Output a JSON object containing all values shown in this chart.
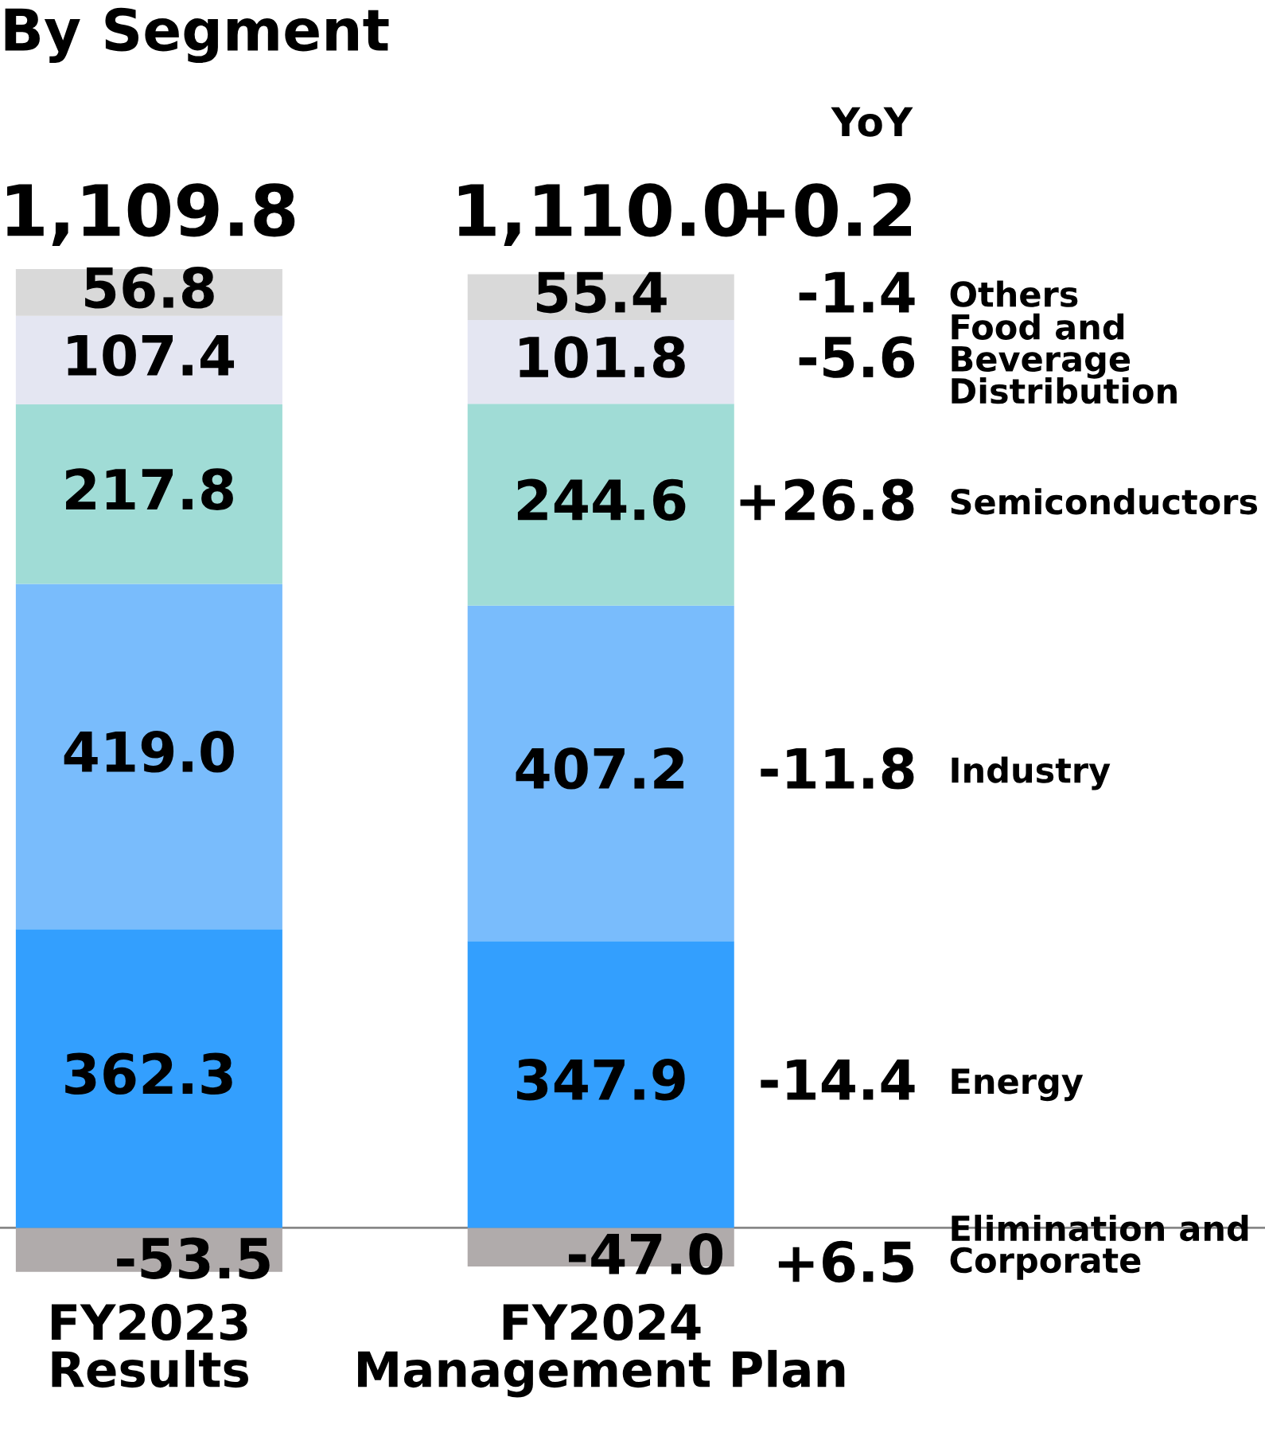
{
  "chart_data": {
    "type": "bar",
    "title": "By Segment",
    "stacked": true,
    "legend": false,
    "grid": false,
    "categories": [
      "FY2023\nResults",
      "FY2024\nManagement Plan"
    ],
    "series": [
      {
        "name": "Elimination and\nCorporate",
        "color": "#b0abab",
        "values": [
          -53.5,
          -47.0
        ],
        "value_labels": [
          "-53.5",
          "-47.0"
        ]
      },
      {
        "name": "Energy",
        "color": "#339ffe",
        "values": [
          362.3,
          347.9
        ],
        "value_labels": [
          "362.3",
          "347.9"
        ]
      },
      {
        "name": "Industry",
        "color": "#79bcfc",
        "values": [
          419.0,
          407.2
        ],
        "value_labels": [
          "419.0",
          "407.2"
        ]
      },
      {
        "name": "Semiconductors",
        "color": "#a0dcd6",
        "values": [
          217.8,
          244.6
        ],
        "value_labels": [
          "217.8",
          "244.6"
        ]
      },
      {
        "name": "Food and\nBeverage\nDistribution",
        "color": "#e4e6f2",
        "values": [
          107.4,
          101.8
        ],
        "value_labels": [
          "107.4",
          "101.8"
        ]
      },
      {
        "name": "Others",
        "color": "#d9d9d9",
        "values": [
          56.8,
          55.4
        ],
        "value_labels": [
          "56.8",
          "55.4"
        ]
      }
    ],
    "totals": [
      "1,109.8",
      "1,110.0"
    ],
    "annotations": [
      "YoY",
      "+0.2",
      "+6.5",
      "-14.4",
      "-11.8",
      "+26.8",
      "-5.6",
      "-1.4"
    ]
  }
}
